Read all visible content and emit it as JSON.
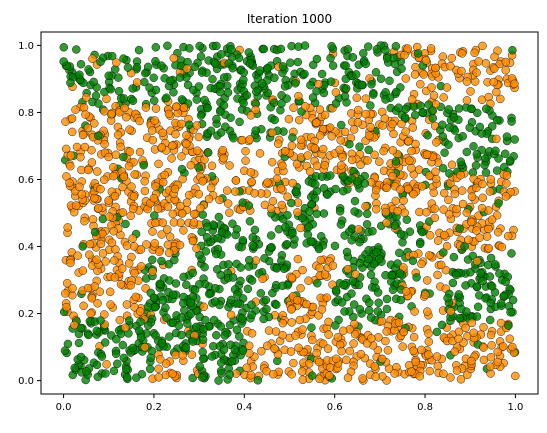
{
  "chart_data": {
    "type": "scatter",
    "title": "Iteration 1000",
    "xlabel": "",
    "ylabel": "",
    "xlim": [
      -0.05,
      1.05
    ],
    "ylim": [
      -0.04,
      1.04
    ],
    "grid": false,
    "legend": "none",
    "x_ticks": [
      "0.0",
      "0.2",
      "0.4",
      "0.6",
      "0.8",
      "1.0"
    ],
    "y_ticks": [
      "0.0",
      "0.2",
      "0.4",
      "0.6",
      "0.8",
      "1.0"
    ],
    "x_tick_values": [
      0.0,
      0.2,
      0.4,
      0.6,
      0.8,
      1.0
    ],
    "y_tick_values": [
      0.0,
      0.2,
      0.4,
      0.6,
      0.8,
      1.0
    ],
    "series": [
      {
        "color": "#ff8c00",
        "edge_color": "#000000",
        "alpha": 0.8
      },
      {
        "color": "#008000",
        "edge_color": "#000000",
        "alpha": 0.8
      }
    ],
    "point_count": 2500,
    "domain": {
      "x": [
        0,
        1
      ],
      "y": [
        0,
        1
      ]
    }
  }
}
